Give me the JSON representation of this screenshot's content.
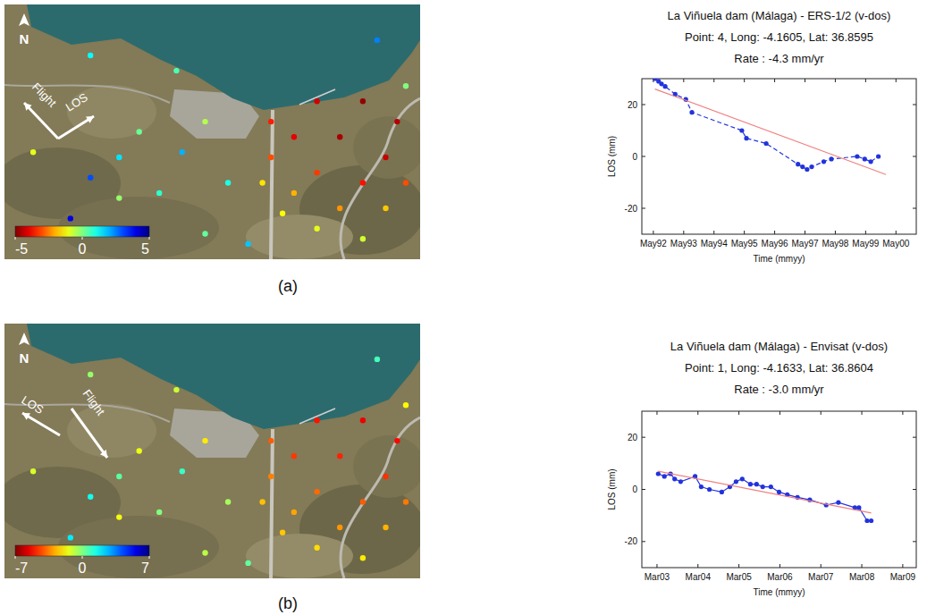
{
  "panel_labels": [
    "(a)",
    "(b)"
  ],
  "maps": [
    {
      "north": "N",
      "flight_label": "Flight",
      "los_label": "LOS",
      "colorbar": {
        "range": [
          -5,
          5
        ],
        "ticks": [
          -5,
          0,
          5
        ]
      },
      "points": [
        {
          "lon": -4.1637,
          "lat": 36.8612,
          "rate": -3.5
        },
        {
          "lon": -4.1621,
          "lat": 36.8616,
          "rate": -4.2
        },
        {
          "lon": -4.1605,
          "lat": 36.8616,
          "rate": -4.8
        },
        {
          "lon": -4.1593,
          "lat": 36.8612,
          "rate": -4.5
        },
        {
          "lon": -4.1629,
          "lat": 36.8609,
          "rate": -4.0
        },
        {
          "lon": -4.1613,
          "lat": 36.8609,
          "rate": -4.6
        },
        {
          "lon": -4.1597,
          "lat": 36.8605,
          "rate": -4.3
        },
        {
          "lon": -4.1637,
          "lat": 36.8605,
          "rate": -3.0
        },
        {
          "lon": -4.1621,
          "lat": 36.8602,
          "rate": -3.2
        },
        {
          "lon": -4.1605,
          "lat": 36.86,
          "rate": -3.6
        },
        {
          "lon": -4.159,
          "lat": 36.86,
          "rate": -3.0
        },
        {
          "lon": -4.1629,
          "lat": 36.8598,
          "rate": -2.0
        },
        {
          "lon": -4.1613,
          "lat": 36.8595,
          "rate": -2.3
        },
        {
          "lon": -4.1597,
          "lat": 36.8595,
          "rate": -1.8
        },
        {
          "lon": -4.1621,
          "lat": 36.8591,
          "rate": -1.0
        },
        {
          "lon": -4.1605,
          "lat": 36.8589,
          "rate": -0.8
        },
        {
          "lon": -4.1633,
          "lat": 36.8594,
          "rate": -1.2
        },
        {
          "lon": -4.164,
          "lat": 36.86,
          "rate": -1.5
        },
        {
          "lon": -4.167,
          "lat": 36.8622,
          "rate": 0.5
        },
        {
          "lon": -4.169,
          "lat": 36.8605,
          "rate": 1.5
        },
        {
          "lon": -4.1683,
          "lat": 36.861,
          "rate": 0.2
        },
        {
          "lon": -4.1668,
          "lat": 36.8606,
          "rate": 2.0
        },
        {
          "lon": -4.166,
          "lat": 36.8612,
          "rate": -0.5
        },
        {
          "lon": -4.1652,
          "lat": 36.86,
          "rate": 1.0
        },
        {
          "lon": -4.1676,
          "lat": 36.8598,
          "rate": 0.8
        },
        {
          "lon": -4.17,
          "lat": 36.8601,
          "rate": 3.0
        },
        {
          "lon": -4.172,
          "lat": 36.8606,
          "rate": -1.0
        },
        {
          "lon": -4.166,
          "lat": 36.859,
          "rate": 0.3
        },
        {
          "lon": -4.1645,
          "lat": 36.8588,
          "rate": 1.8
        },
        {
          "lon": -4.159,
          "lat": 36.8619,
          "rate": 0.0
        },
        {
          "lon": -4.16,
          "lat": 36.8628,
          "rate": 2.5
        },
        {
          "lon": -4.17,
          "lat": 36.8625,
          "rate": 1.2
        },
        {
          "lon": -4.1707,
          "lat": 36.8593,
          "rate": 4.0
        },
        {
          "lon": -4.169,
          "lat": 36.8597,
          "rate": -0.2
        }
      ]
    },
    {
      "north": "N",
      "flight_label": "Flight",
      "los_label": "LOS",
      "colorbar": {
        "range": [
          -7,
          7
        ],
        "ticks": [
          -7,
          0,
          7
        ]
      },
      "points": [
        {
          "lon": -4.1637,
          "lat": 36.8612,
          "rate": -4.0
        },
        {
          "lon": -4.1621,
          "lat": 36.8616,
          "rate": -5.0
        },
        {
          "lon": -4.1605,
          "lat": 36.8616,
          "rate": -5.5
        },
        {
          "lon": -4.1593,
          "lat": 36.8612,
          "rate": -5.2
        },
        {
          "lon": -4.1629,
          "lat": 36.8609,
          "rate": -4.5
        },
        {
          "lon": -4.1613,
          "lat": 36.8609,
          "rate": -4.8
        },
        {
          "lon": -4.1597,
          "lat": 36.8605,
          "rate": -4.6
        },
        {
          "lon": -4.1637,
          "lat": 36.8605,
          "rate": -3.5
        },
        {
          "lon": -4.1621,
          "lat": 36.8602,
          "rate": -3.8
        },
        {
          "lon": -4.1605,
          "lat": 36.86,
          "rate": -4.0
        },
        {
          "lon": -4.159,
          "lat": 36.86,
          "rate": -3.6
        },
        {
          "lon": -4.1629,
          "lat": 36.8598,
          "rate": -3.0
        },
        {
          "lon": -4.1613,
          "lat": 36.8595,
          "rate": -3.2
        },
        {
          "lon": -4.1597,
          "lat": 36.8595,
          "rate": -2.8
        },
        {
          "lon": -4.1621,
          "lat": 36.8591,
          "rate": -2.2
        },
        {
          "lon": -4.1605,
          "lat": 36.8589,
          "rate": -2.0
        },
        {
          "lon": -4.1633,
          "lat": 36.8594,
          "rate": -2.5
        },
        {
          "lon": -4.164,
          "lat": 36.86,
          "rate": -2.6
        },
        {
          "lon": -4.167,
          "lat": 36.8622,
          "rate": -1.0
        },
        {
          "lon": -4.169,
          "lat": 36.8605,
          "rate": 0.5
        },
        {
          "lon": -4.1683,
          "lat": 36.861,
          "rate": -1.5
        },
        {
          "lon": -4.1668,
          "lat": 36.8606,
          "rate": 1.0
        },
        {
          "lon": -4.166,
          "lat": 36.8612,
          "rate": -2.0
        },
        {
          "lon": -4.1652,
          "lat": 36.86,
          "rate": -0.5
        },
        {
          "lon": -4.1676,
          "lat": 36.8598,
          "rate": 0.0
        },
        {
          "lon": -4.17,
          "lat": 36.8601,
          "rate": 1.5
        },
        {
          "lon": -4.172,
          "lat": 36.8606,
          "rate": -1.2
        },
        {
          "lon": -4.166,
          "lat": 36.859,
          "rate": -0.8
        },
        {
          "lon": -4.1645,
          "lat": 36.8588,
          "rate": 0.4
        },
        {
          "lon": -4.159,
          "lat": 36.8619,
          "rate": -1.8
        },
        {
          "lon": -4.16,
          "lat": 36.8628,
          "rate": 0.8
        },
        {
          "lon": -4.17,
          "lat": 36.8625,
          "rate": -0.3
        },
        {
          "lon": -4.1707,
          "lat": 36.8593,
          "rate": 2.0
        },
        {
          "lon": -4.169,
          "lat": 36.8597,
          "rate": -1.6
        }
      ]
    }
  ],
  "chart_data": [
    {
      "type": "line",
      "title": "La Viñuela dam (Málaga) - ERS-1/2  (v-dos)",
      "subtitle": "Point: 4, Long: -4.1605, Lat: 36.8595",
      "annotation": "Rate : -4.3 mm/yr",
      "x_label": "Time (mmyy)",
      "y_label": "LOS (mm)",
      "xlim": [
        1991.95,
        2001.0
      ],
      "ylim": [
        -30,
        30
      ],
      "xticks": [
        {
          "value": 1992.33,
          "label": "May92"
        },
        {
          "value": 1993.33,
          "label": "May93"
        },
        {
          "value": 1994.33,
          "label": "May94"
        },
        {
          "value": 1995.33,
          "label": "May95"
        },
        {
          "value": 1996.33,
          "label": "May96"
        },
        {
          "value": 1997.33,
          "label": "May97"
        },
        {
          "value": 1998.33,
          "label": "May98"
        },
        {
          "value": 1999.33,
          "label": "May99"
        },
        {
          "value": 2000.33,
          "label": "May00"
        }
      ],
      "yticks": [
        -20,
        0,
        20
      ],
      "grid": false,
      "series": [
        {
          "color": "#2233dd",
          "marker": "circle",
          "line_style": "dashed",
          "x": [
            1992.38,
            1992.5,
            1992.6,
            1992.72,
            1993.05,
            1993.4,
            1993.6,
            1995.25,
            1995.4,
            1996.05,
            1997.1,
            1997.25,
            1997.4,
            1997.55,
            1997.95,
            1998.2,
            1999.05,
            1999.3,
            1999.5,
            1999.75
          ],
          "values": [
            30,
            29,
            28,
            27,
            24,
            22,
            17,
            10,
            7,
            5,
            -3,
            -4,
            -5,
            -4,
            -2,
            -1,
            0,
            -1,
            -2,
            0
          ]
        },
        {
          "color": "#f08080",
          "line_style": "solid",
          "x": [
            1992.38,
            2000.0
          ],
          "values": [
            26,
            -7
          ]
        }
      ]
    },
    {
      "type": "line",
      "title": "La Viñuela dam (Málaga) - Envisat  (v-dos)",
      "subtitle": "Point: 1, Long: -4.1633, Lat: 36.8604",
      "annotation": "Rate : -3.0 mm/yr",
      "x_label": "Time (mmyy)",
      "y_label": "LOS (mm)",
      "xlim": [
        2002.8,
        2009.5
      ],
      "ylim": [
        -30,
        30
      ],
      "xticks": [
        {
          "value": 2003.17,
          "label": "Mar03"
        },
        {
          "value": 2004.17,
          "label": "Mar04"
        },
        {
          "value": 2005.17,
          "label": "Mar05"
        },
        {
          "value": 2006.17,
          "label": "Mar06"
        },
        {
          "value": 2007.17,
          "label": "Mar07"
        },
        {
          "value": 2008.17,
          "label": "Mar08"
        },
        {
          "value": 2009.17,
          "label": "Mar09"
        }
      ],
      "yticks": [
        -20,
        0,
        20
      ],
      "grid": false,
      "series": [
        {
          "color": "#2233dd",
          "marker": "circle",
          "line_style": "solid",
          "x": [
            2003.2,
            2003.35,
            2003.5,
            2003.6,
            2003.75,
            2004.1,
            2004.25,
            2004.45,
            2004.75,
            2004.95,
            2005.1,
            2005.25,
            2005.45,
            2005.6,
            2005.75,
            2005.95,
            2006.15,
            2006.35,
            2006.6,
            2006.9,
            2007.3,
            2007.6,
            2008.0,
            2008.1,
            2008.3,
            2008.4
          ],
          "values": [
            6,
            5,
            6,
            4,
            3,
            5,
            1,
            0,
            -1,
            1,
            3,
            4,
            2,
            2,
            1,
            1,
            -1,
            -2,
            -3,
            -4,
            -6,
            -5,
            -7,
            -7,
            -12,
            -12
          ]
        },
        {
          "color": "#f08080",
          "line_style": "solid",
          "x": [
            2003.2,
            2008.4
          ],
          "values": [
            7,
            -9
          ]
        }
      ]
    }
  ]
}
